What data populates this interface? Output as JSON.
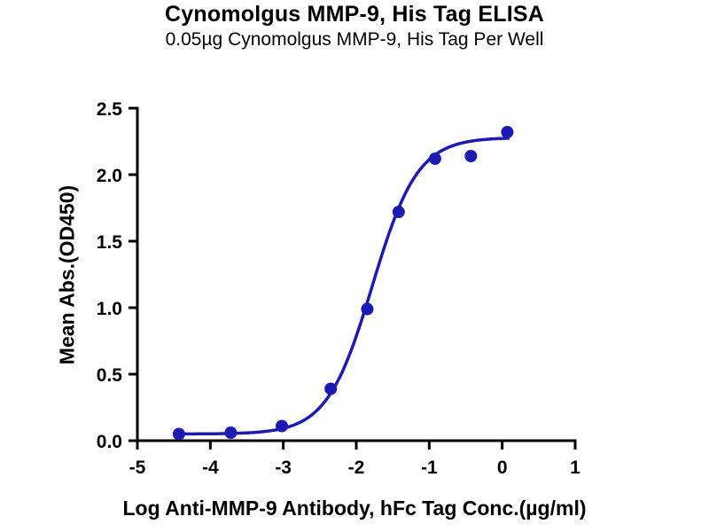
{
  "chart_data": {
    "type": "scatter",
    "title": "Cynomolgus MMP-9, His Tag ELISA",
    "subtitle": "0.05µg Cynomolgus MMP-9, His Tag Per Well",
    "xlabel": "Log Anti-MMP-9 Antibody, hFc Tag Conc.(µg/ml)",
    "ylabel": "Mean Abs.(OD450)",
    "xlim": [
      -5,
      1
    ],
    "ylim": [
      0,
      2.5
    ],
    "x_ticks": [
      -5,
      -4,
      -3,
      -2,
      -1,
      0,
      1
    ],
    "y_ticks": [
      0.0,
      0.5,
      1.0,
      1.5,
      2.0,
      2.5
    ],
    "grid": false,
    "legend": "none",
    "accent_color": "#1b1bb3",
    "axis_color": "#000000",
    "series": [
      {
        "name": "Mean Abs.(OD450)",
        "marker": "circle",
        "color": "#1b1bb3",
        "points": [
          [
            -4.43,
            0.05
          ],
          [
            -3.72,
            0.06
          ],
          [
            -3.02,
            0.11
          ],
          [
            -2.35,
            0.39
          ],
          [
            -1.85,
            0.99
          ],
          [
            -1.42,
            1.72
          ],
          [
            -0.92,
            2.12
          ],
          [
            -0.43,
            2.14
          ],
          [
            0.07,
            2.32
          ]
        ]
      }
    ],
    "fit_curve": {
      "model": "4PL-sigmoid",
      "bottom": 0.05,
      "top": 2.28,
      "log_ec50": -1.78,
      "hill": 1.4,
      "x_range": [
        -4.43,
        0.1
      ],
      "color": "#1b1bb3"
    }
  }
}
